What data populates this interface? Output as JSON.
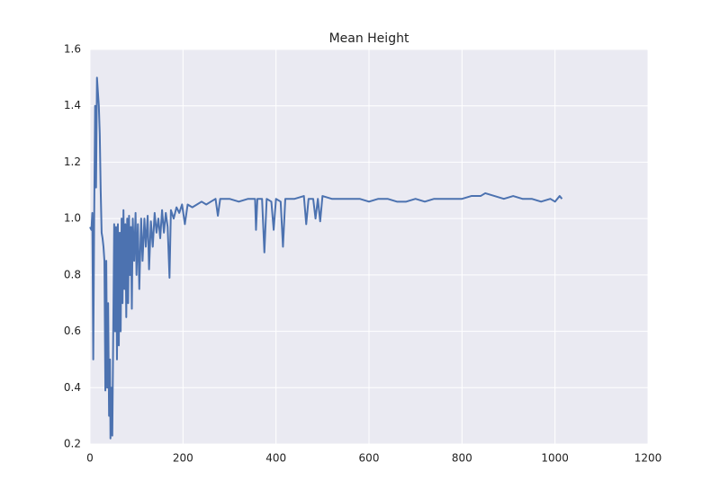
{
  "chart_data": {
    "type": "line",
    "title": "Mean Height",
    "x": [
      0,
      3,
      5,
      7,
      9,
      11,
      13,
      15,
      17,
      19,
      21,
      23,
      25,
      27,
      29,
      31,
      33,
      35,
      37,
      39,
      41,
      43,
      44,
      46,
      48,
      50,
      52,
      54,
      56,
      58,
      60,
      62,
      64,
      66,
      68,
      70,
      72,
      74,
      76,
      78,
      80,
      82,
      84,
      86,
      88,
      90,
      92,
      95,
      98,
      100,
      103,
      106,
      110,
      113,
      117,
      120,
      124,
      127,
      131,
      135,
      139,
      143,
      147,
      151,
      155,
      159,
      163,
      167,
      171,
      174,
      180,
      186,
      192,
      198,
      204,
      210,
      220,
      230,
      240,
      250,
      260,
      270,
      275,
      280,
      300,
      320,
      340,
      355,
      357,
      360,
      370,
      375,
      380,
      390,
      395,
      400,
      410,
      415,
      420,
      440,
      460,
      465,
      470,
      480,
      485,
      490,
      495,
      500,
      520,
      540,
      560,
      580,
      600,
      620,
      640,
      660,
      680,
      700,
      720,
      740,
      760,
      780,
      800,
      820,
      840,
      850,
      870,
      890,
      910,
      930,
      950,
      970,
      990,
      1000,
      1010,
      1015
    ],
    "values": [
      0.97,
      0.96,
      1.02,
      0.5,
      1.0,
      1.4,
      1.11,
      1.5,
      1.45,
      1.4,
      1.3,
      1.1,
      0.95,
      0.93,
      0.9,
      0.85,
      0.39,
      0.85,
      0.4,
      0.7,
      0.3,
      0.5,
      0.22,
      0.4,
      0.23,
      0.6,
      0.98,
      0.6,
      0.97,
      0.5,
      0.98,
      0.55,
      0.95,
      0.6,
      1.0,
      0.7,
      1.03,
      0.75,
      0.98,
      0.65,
      1.0,
      0.7,
      1.01,
      0.8,
      0.97,
      0.68,
      1.0,
      0.85,
      1.02,
      0.8,
      0.98,
      0.75,
      1.0,
      0.85,
      1.0,
      0.9,
      1.01,
      0.82,
      0.99,
      0.9,
      1.02,
      0.95,
      1.0,
      0.93,
      1.03,
      0.95,
      1.02,
      0.97,
      0.79,
      1.03,
      1.0,
      1.04,
      1.02,
      1.05,
      0.98,
      1.05,
      1.04,
      1.05,
      1.06,
      1.05,
      1.06,
      1.07,
      1.01,
      1.07,
      1.07,
      1.06,
      1.07,
      1.07,
      0.96,
      1.07,
      1.07,
      0.88,
      1.07,
      1.06,
      0.96,
      1.07,
      1.06,
      0.9,
      1.07,
      1.07,
      1.08,
      0.98,
      1.07,
      1.07,
      1.0,
      1.07,
      0.99,
      1.08,
      1.07,
      1.07,
      1.07,
      1.07,
      1.06,
      1.07,
      1.07,
      1.06,
      1.06,
      1.07,
      1.06,
      1.07,
      1.07,
      1.07,
      1.07,
      1.08,
      1.08,
      1.09,
      1.08,
      1.07,
      1.08,
      1.07,
      1.07,
      1.06,
      1.07,
      1.06,
      1.08,
      1.07
    ],
    "color": "#4c72b0",
    "xlim": [
      0,
      1200
    ],
    "xticks": [
      0,
      200,
      400,
      600,
      800,
      1000,
      1200
    ],
    "ylim": [
      0.2,
      1.6
    ],
    "yticks": [
      0.2,
      0.4,
      0.6,
      0.8,
      {
        "value": 1,
        "label": "1.0"
      },
      1.2,
      1.4,
      1.6
    ],
    "grid": true
  }
}
